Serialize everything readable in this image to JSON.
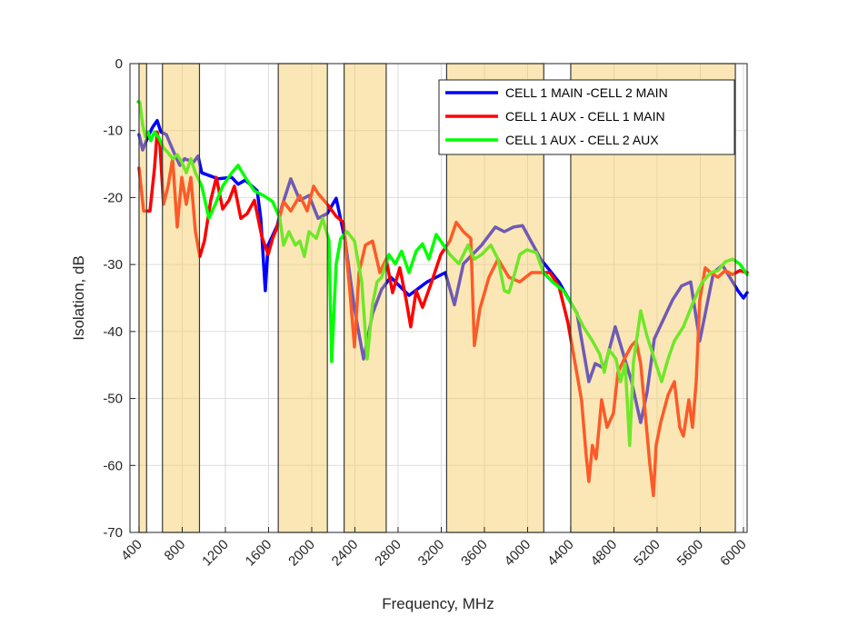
{
  "chart_data": {
    "type": "line",
    "title": "",
    "xlabel": "Frequency, MHz",
    "ylabel": "Isolation, dB",
    "xlim": [
      316,
      6034
    ],
    "ylim": [
      -70,
      0
    ],
    "xticks": [
      400,
      800,
      1200,
      1600,
      2000,
      2400,
      2800,
      3200,
      3600,
      4000,
      4400,
      4800,
      5200,
      5600,
      6000
    ],
    "xtick_labels": [
      "400",
      "800",
      "1200",
      "1600",
      "2000",
      "2400",
      "2800",
      "3200",
      "3600",
      "4000",
      "4400",
      "4800",
      "5200",
      "5600",
      "6000"
    ],
    "yticks": [
      0,
      -10,
      -20,
      -30,
      -40,
      -50,
      -60,
      -70
    ],
    "ytick_labels": [
      "0",
      "-10",
      "-20",
      "-30",
      "-40",
      "-50",
      "-60",
      "-70"
    ],
    "grid": true,
    "legend_position": "top-right",
    "shaded_bands_mhz": [
      [
        400,
        470
      ],
      [
        617,
        960
      ],
      [
        1690,
        2145
      ],
      [
        2300,
        2690
      ],
      [
        3250,
        4150
      ],
      [
        4400,
        5925
      ]
    ],
    "colors": {
      "band": "#f7c95a",
      "band_edge": "#3a3a3a",
      "grid": "#dcdcdc",
      "axis": "#262626"
    },
    "series": [
      {
        "name": "CELL 1 MAIN -CELL 2 MAIN",
        "color": "#0000ff",
        "x": [
          400,
          434,
          484,
          526,
          568,
          602,
          653,
          737,
          779,
          821,
          905,
          947,
          981,
          1133,
          1259,
          1318,
          1385,
          1495,
          1528,
          1570,
          1596,
          1680,
          1722,
          1806,
          1890,
          1975,
          2059,
          2143,
          2227,
          2311,
          2396,
          2480,
          2564,
          2648,
          2732,
          2901,
          3069,
          3238,
          3322,
          3406,
          3574,
          3701,
          3785,
          3869,
          3953,
          4122,
          4290,
          4458,
          4568,
          4627,
          4711,
          4812,
          4964,
          5048,
          5107,
          5174,
          5343,
          5427,
          5511,
          5595,
          5722,
          5806,
          5949,
          6000,
          6034
        ],
        "y": [
          -10.6,
          -12.9,
          -10.9,
          -9.5,
          -8.5,
          -10.2,
          -10.6,
          -13.8,
          -15.2,
          -14.2,
          -14.7,
          -13.8,
          -16.3,
          -17.2,
          -17.0,
          -18.0,
          -17.4,
          -19.0,
          -23.1,
          -33.9,
          -27.1,
          -24.2,
          -21.4,
          -17.2,
          -20.4,
          -19.7,
          -23.1,
          -22.4,
          -20.1,
          -26.5,
          -36.6,
          -44.1,
          -37.3,
          -33.7,
          -31.9,
          -34.6,
          -32.6,
          -31.2,
          -36.0,
          -29.9,
          -27.1,
          -24.4,
          -25.1,
          -24.4,
          -24.2,
          -29.2,
          -32.6,
          -37.3,
          -47.5,
          -44.8,
          -45.5,
          -39.3,
          -47.5,
          -53.6,
          -49.1,
          -41.1,
          -35.3,
          -33.2,
          -32.6,
          -41.4,
          -31.2,
          -30.1,
          -33.9,
          -35.0,
          -34.2
        ]
      },
      {
        "name": "CELL 1 AUX - CELL 1 MAIN",
        "color": "#ff0000",
        "x": [
          400,
          442,
          501,
          543,
          568,
          594,
          627,
          669,
          711,
          754,
          796,
          838,
          880,
          922,
          964,
          1006,
          1065,
          1116,
          1175,
          1234,
          1284,
          1343,
          1402,
          1469,
          1537,
          1596,
          1638,
          1680,
          1739,
          1806,
          1890,
          1958,
          2017,
          2059,
          2143,
          2227,
          2294,
          2353,
          2396,
          2438,
          2497,
          2564,
          2631,
          2690,
          2749,
          2816,
          2875,
          2917,
          2968,
          3027,
          3111,
          3196,
          3280,
          3339,
          3406,
          3474,
          3507,
          3558,
          3642,
          3726,
          3827,
          3928,
          4037,
          4122,
          4206,
          4290,
          4374,
          4433,
          4500,
          4542,
          4568,
          4601,
          4635,
          4686,
          4736,
          4795,
          4837,
          4896,
          4964,
          5006,
          5048,
          5090,
          5132,
          5166,
          5191,
          5233,
          5301,
          5360,
          5410,
          5444,
          5494,
          5528,
          5562,
          5595,
          5646,
          5696,
          5764,
          5831,
          5899,
          5966,
          6034
        ],
        "y": [
          -15.6,
          -22.0,
          -22.0,
          -15.6,
          -10.2,
          -12.2,
          -21.0,
          -18.3,
          -14.2,
          -24.4,
          -17.0,
          -21.0,
          -17.0,
          -25.1,
          -28.8,
          -26.5,
          -20.4,
          -17.0,
          -21.7,
          -20.4,
          -18.3,
          -23.1,
          -22.4,
          -20.4,
          -25.8,
          -28.5,
          -26.1,
          -24.4,
          -20.6,
          -22.0,
          -19.7,
          -22.0,
          -18.3,
          -19.4,
          -21.0,
          -22.8,
          -23.7,
          -33.9,
          -42.3,
          -31.2,
          -27.1,
          -26.5,
          -31.2,
          -29.2,
          -34.2,
          -30.5,
          -35.3,
          -39.3,
          -33.9,
          -36.4,
          -32.6,
          -28.5,
          -26.5,
          -23.7,
          -25.1,
          -26.1,
          -42.1,
          -36.6,
          -31.9,
          -29.2,
          -31.9,
          -32.6,
          -31.2,
          -31.2,
          -31.2,
          -33.2,
          -38.7,
          -44.1,
          -50.2,
          -58.3,
          -62.4,
          -57.0,
          -59.0,
          -50.2,
          -54.3,
          -52.2,
          -46.1,
          -44.1,
          -42.1,
          -41.4,
          -44.8,
          -52.2,
          -59.7,
          -64.5,
          -57.0,
          -53.6,
          -49.5,
          -47.5,
          -54.3,
          -55.6,
          -50.2,
          -54.3,
          -47.5,
          -35.3,
          -30.5,
          -31.2,
          -31.9,
          -30.9,
          -31.5,
          -30.9,
          -31.2
        ]
      },
      {
        "name": "CELL 1 AUX - CELL 2 AUX",
        "color": "#00ff00",
        "x": [
          392,
          408,
          434,
          459,
          484,
          509,
          543,
          585,
          627,
          669,
          711,
          754,
          796,
          838,
          880,
          922,
          981,
          1048,
          1107,
          1175,
          1259,
          1318,
          1385,
          1469,
          1553,
          1638,
          1705,
          1739,
          1789,
          1848,
          1890,
          1932,
          1975,
          2042,
          2101,
          2160,
          2185,
          2227,
          2269,
          2328,
          2396,
          2463,
          2514,
          2564,
          2606,
          2648,
          2715,
          2774,
          2833,
          2901,
          2968,
          3027,
          3086,
          3153,
          3221,
          3280,
          3364,
          3448,
          3507,
          3574,
          3659,
          3726,
          3785,
          3827,
          3878,
          3928,
          3995,
          4080,
          4147,
          4231,
          4332,
          4433,
          4517,
          4601,
          4669,
          4711,
          4753,
          4820,
          4862,
          4904,
          4946,
          4980,
          5048,
          5107,
          5174,
          5242,
          5301,
          5360,
          5444,
          5528,
          5612,
          5696,
          5764,
          5831,
          5899,
          5966,
          6034
        ],
        "y": [
          -5.7,
          -5.8,
          -9.2,
          -10.9,
          -10.2,
          -11.5,
          -10.2,
          -11.1,
          -12.6,
          -13.3,
          -14.2,
          -13.6,
          -14.7,
          -16.3,
          -14.2,
          -16.3,
          -18.3,
          -23.1,
          -21.0,
          -18.3,
          -16.3,
          -15.2,
          -17.0,
          -19.0,
          -19.7,
          -20.6,
          -23.1,
          -27.1,
          -25.1,
          -27.1,
          -26.5,
          -28.8,
          -25.1,
          -26.1,
          -23.1,
          -26.5,
          -44.5,
          -29.9,
          -26.1,
          -25.1,
          -26.5,
          -32.6,
          -44.1,
          -35.9,
          -32.6,
          -31.9,
          -28.5,
          -29.9,
          -28.0,
          -31.2,
          -28.0,
          -26.9,
          -29.2,
          -25.5,
          -27.1,
          -28.5,
          -29.9,
          -27.1,
          -29.2,
          -28.5,
          -27.1,
          -29.2,
          -33.9,
          -34.2,
          -31.5,
          -28.5,
          -27.8,
          -28.2,
          -31.2,
          -32.6,
          -33.9,
          -36.6,
          -39.3,
          -41.4,
          -43.4,
          -46.1,
          -42.7,
          -44.1,
          -47.5,
          -44.8,
          -57.0,
          -44.8,
          -36.9,
          -40.7,
          -44.1,
          -47.5,
          -44.1,
          -41.4,
          -39.3,
          -35.9,
          -32.8,
          -31.2,
          -30.9,
          -29.6,
          -29.2,
          -29.9,
          -31.5
        ]
      }
    ]
  }
}
